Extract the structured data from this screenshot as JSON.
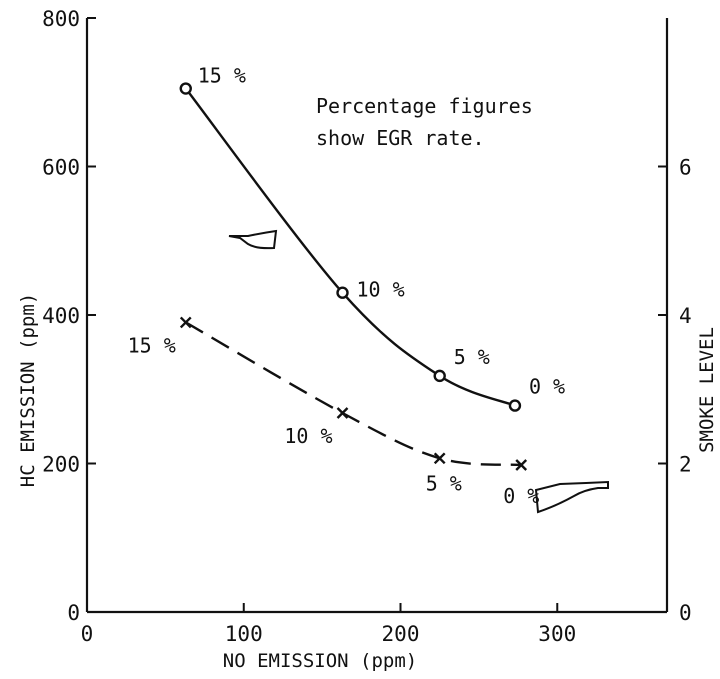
{
  "chart_data": {
    "type": "line",
    "xlabel": "NO EMISSION (ppm)",
    "ylabel_left": "HC EMISSION (ppm)",
    "ylabel_right": "SMOKE LEVEL",
    "xlim": [
      0,
      370
    ],
    "ylim_left": [
      0,
      800
    ],
    "ylim_right": [
      0,
      8
    ],
    "x_ticks": [
      0,
      100,
      200,
      300
    ],
    "y_left_ticks": [
      0,
      200,
      400,
      600,
      800
    ],
    "y_right_ticks": [
      0,
      2,
      4,
      6
    ],
    "grid": false,
    "annotation": [
      "Percentage figures",
      "show EGR rate."
    ],
    "series": [
      {
        "axis": "left",
        "marker": "circle",
        "line_style": "solid",
        "x": [
          63,
          163,
          225,
          273
        ],
        "y": [
          705,
          430,
          318,
          278
        ],
        "labels": [
          "15 %",
          "10 %",
          "5 %",
          "0 %"
        ]
      },
      {
        "axis": "right",
        "marker": "x",
        "line_style": "dashed",
        "x": [
          63,
          163,
          225,
          277
        ],
        "y": [
          3.9,
          2.68,
          2.07,
          1.98
        ],
        "labels": [
          "15 %",
          "10 %",
          "5 %",
          "0 %"
        ]
      }
    ]
  }
}
